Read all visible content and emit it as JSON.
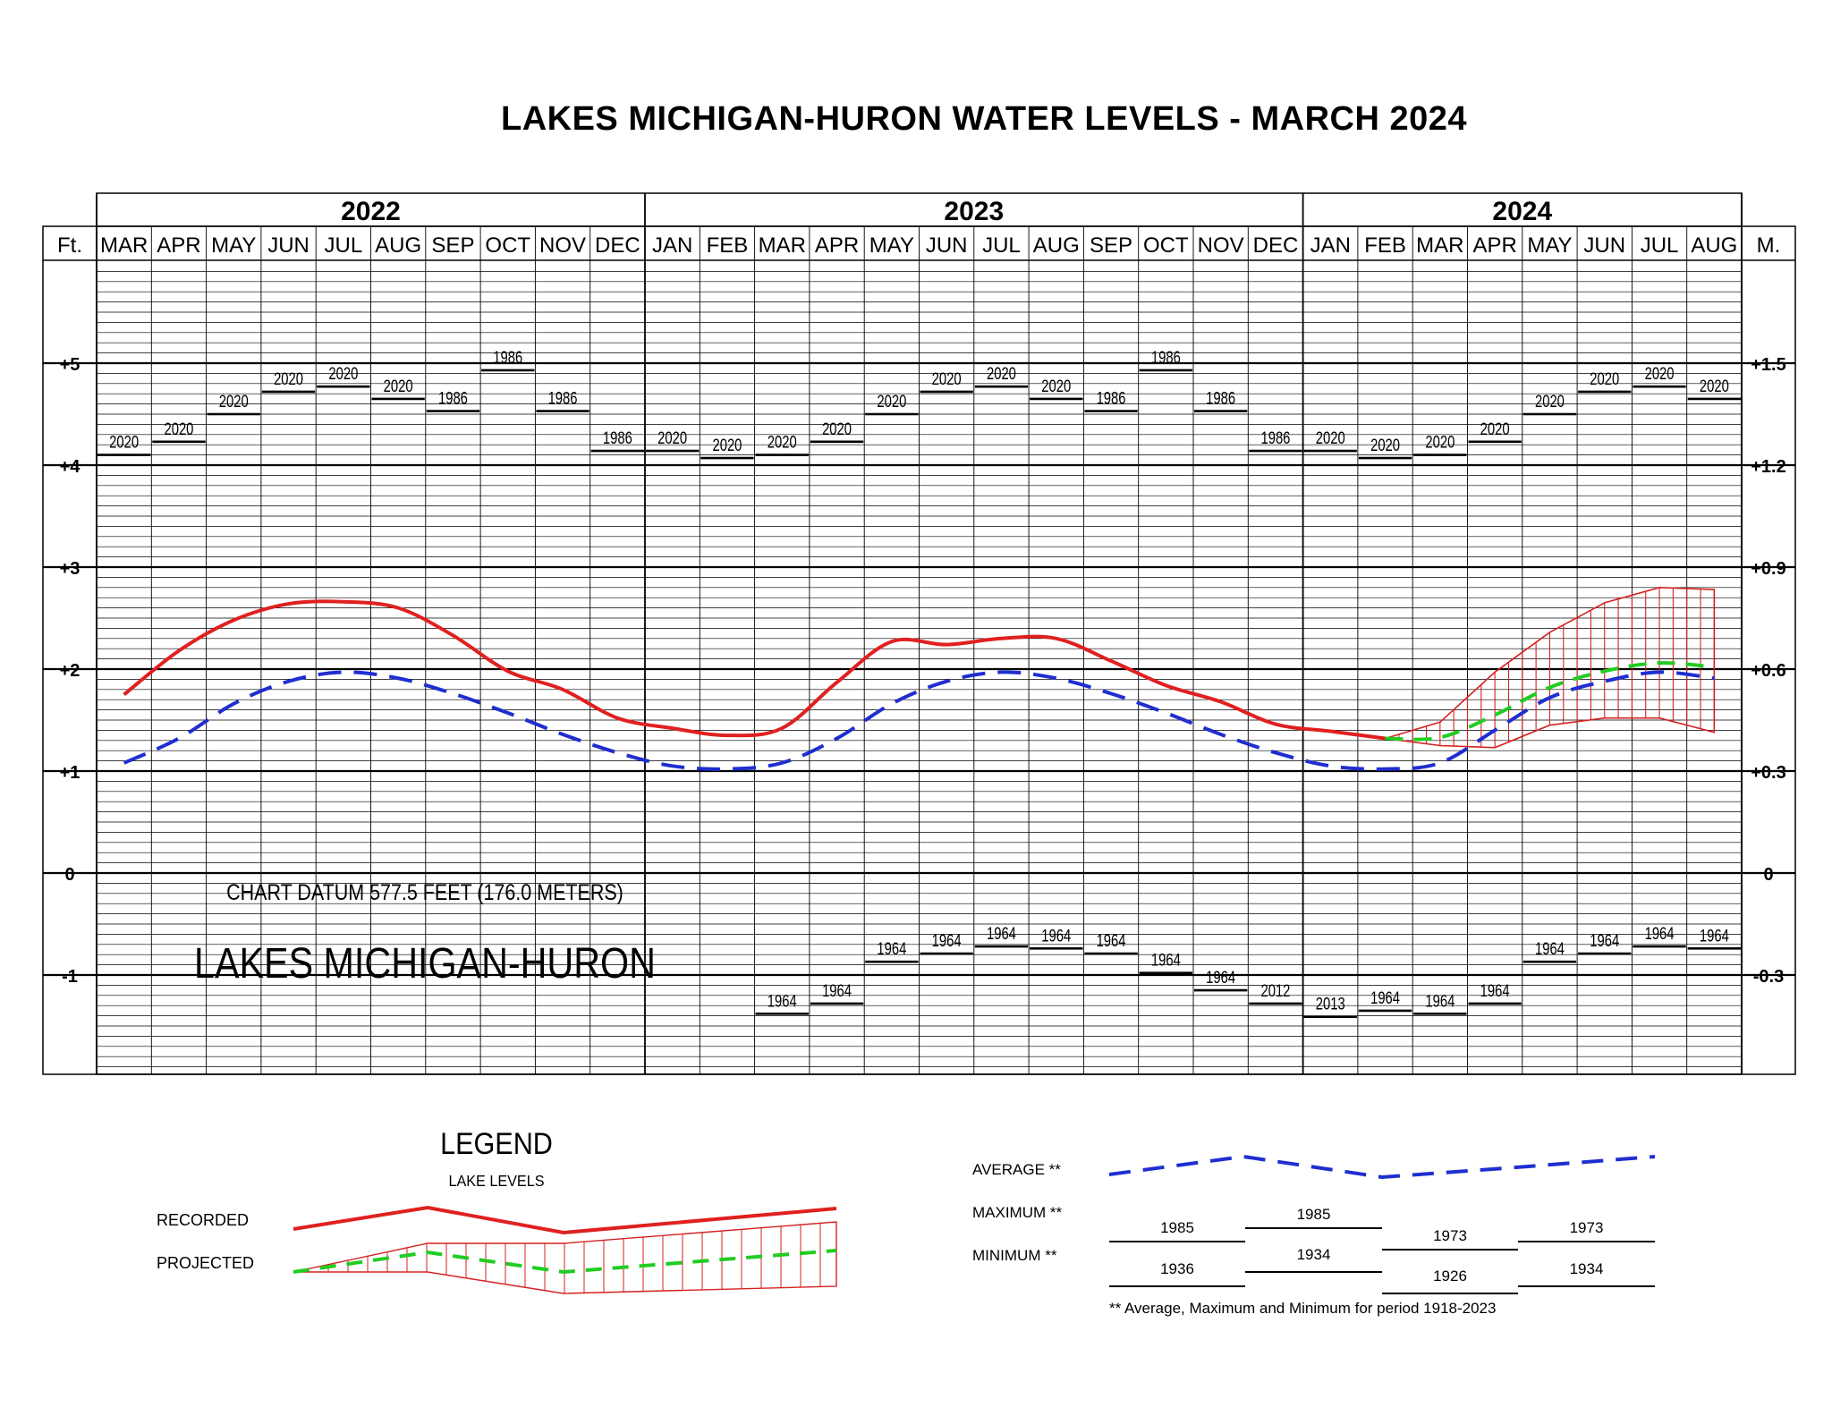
{
  "title": "LAKES MICHIGAN-HURON WATER LEVELS - MARCH 2024",
  "colors": {
    "recorded": "#e02020",
    "average": "#1f2ecf",
    "projected": "#22cc22",
    "band": "#d42222",
    "grid": "#000000"
  },
  "axis": {
    "left_unit": "Ft.",
    "right_unit": "M."
  },
  "chart_data": {
    "type": "line",
    "title": "LAKES MICHIGAN-HURON WATER LEVELS - MARCH 2024",
    "years": [
      {
        "label": "2022",
        "start": 0,
        "end": 10
      },
      {
        "label": "2023",
        "start": 10,
        "end": 22
      },
      {
        "label": "2024",
        "start": 22,
        "end": 30
      }
    ],
    "months": [
      "MAR",
      "APR",
      "MAY",
      "JUN",
      "JUL",
      "AUG",
      "SEP",
      "OCT",
      "NOV",
      "DEC",
      "JAN",
      "FEB",
      "MAR",
      "APR",
      "MAY",
      "JUN",
      "JUL",
      "AUG",
      "SEP",
      "OCT",
      "NOV",
      "DEC",
      "JAN",
      "FEB",
      "MAR",
      "APR",
      "MAY",
      "JUN",
      "JUL",
      "AUG"
    ],
    "ylim": [
      -2.0,
      6.0
    ],
    "yticks_ft": [
      {
        "v": 5,
        "label": "+5"
      },
      {
        "v": 4,
        "label": "+4"
      },
      {
        "v": 3,
        "label": "+3"
      },
      {
        "v": 2,
        "label": "+2"
      },
      {
        "v": 1,
        "label": "+1"
      },
      {
        "v": 0,
        "label": "0"
      },
      {
        "v": -1,
        "label": "-1"
      }
    ],
    "yticks_m": [
      {
        "v": 5,
        "label": "+1.5"
      },
      {
        "v": 4,
        "label": "+1.2"
      },
      {
        "v": 3,
        "label": "+0.9"
      },
      {
        "v": 2,
        "label": "+0.6"
      },
      {
        "v": 1,
        "label": "+0.3"
      },
      {
        "v": 0,
        "label": "0"
      },
      {
        "v": -1,
        "label": "-0.3"
      }
    ],
    "recorded": {
      "x": [
        0,
        1,
        2,
        3,
        4,
        5,
        6,
        7,
        8,
        9,
        10,
        11,
        12,
        13,
        14,
        15,
        16,
        17,
        18,
        19,
        20,
        21,
        22,
        23
      ],
      "y": [
        1.75,
        2.18,
        2.48,
        2.64,
        2.66,
        2.6,
        2.33,
        1.98,
        1.8,
        1.52,
        1.42,
        1.35,
        1.42,
        1.87,
        2.27,
        2.24,
        2.3,
        2.3,
        2.08,
        1.84,
        1.68,
        1.46,
        1.39,
        1.32
      ]
    },
    "average": {
      "x": [
        0,
        1,
        2,
        3,
        4,
        5,
        6,
        7,
        8,
        9,
        10,
        11,
        12,
        13,
        14,
        15,
        16,
        17,
        18,
        19,
        20,
        21,
        22,
        23,
        24,
        25,
        26,
        27,
        28,
        29
      ],
      "y": [
        1.08,
        1.32,
        1.66,
        1.88,
        1.97,
        1.91,
        1.76,
        1.57,
        1.36,
        1.18,
        1.05,
        1.02,
        1.08,
        1.32,
        1.66,
        1.88,
        1.97,
        1.91,
        1.76,
        1.57,
        1.36,
        1.18,
        1.05,
        1.02,
        1.08,
        1.4,
        1.72,
        1.88,
        1.97,
        1.91
      ]
    },
    "projected": {
      "x": [
        23,
        24,
        25,
        26,
        27,
        28,
        29
      ],
      "y": [
        1.32,
        1.33,
        1.55,
        1.82,
        1.98,
        2.06,
        2.02
      ]
    },
    "projected_max": {
      "x": [
        23,
        24,
        25,
        26,
        27,
        28,
        29
      ],
      "y": [
        1.32,
        1.48,
        1.97,
        2.36,
        2.65,
        2.8,
        2.78
      ]
    },
    "projected_min": {
      "x": [
        23,
        24,
        25,
        26,
        27,
        28,
        29
      ],
      "y": [
        1.32,
        1.25,
        1.23,
        1.45,
        1.52,
        1.52,
        1.38
      ]
    },
    "maximum_records": [
      {
        "x": 0,
        "y": 4.1,
        "year": "2020"
      },
      {
        "x": 1,
        "y": 4.23,
        "year": "2020"
      },
      {
        "x": 2,
        "y": 4.5,
        "year": "2020"
      },
      {
        "x": 3,
        "y": 4.72,
        "year": "2020"
      },
      {
        "x": 4,
        "y": 4.77,
        "year": "2020"
      },
      {
        "x": 5,
        "y": 4.65,
        "year": "2020"
      },
      {
        "x": 6,
        "y": 4.53,
        "year": "1986"
      },
      {
        "x": 7,
        "y": 4.93,
        "year": "1986"
      },
      {
        "x": 8,
        "y": 4.53,
        "year": "1986"
      },
      {
        "x": 9,
        "y": 4.14,
        "year": "1986"
      },
      {
        "x": 10,
        "y": 4.14,
        "year": "2020"
      },
      {
        "x": 11,
        "y": 4.07,
        "year": "2020"
      },
      {
        "x": 12,
        "y": 4.1,
        "year": "2020"
      },
      {
        "x": 13,
        "y": 4.23,
        "year": "2020"
      },
      {
        "x": 14,
        "y": 4.5,
        "year": "2020"
      },
      {
        "x": 15,
        "y": 4.72,
        "year": "2020"
      },
      {
        "x": 16,
        "y": 4.77,
        "year": "2020"
      },
      {
        "x": 17,
        "y": 4.65,
        "year": "2020"
      },
      {
        "x": 18,
        "y": 4.53,
        "year": "1986"
      },
      {
        "x": 19,
        "y": 4.93,
        "year": "1986"
      },
      {
        "x": 20,
        "y": 4.53,
        "year": "1986"
      },
      {
        "x": 21,
        "y": 4.14,
        "year": "1986"
      },
      {
        "x": 22,
        "y": 4.14,
        "year": "2020"
      },
      {
        "x": 23,
        "y": 4.07,
        "year": "2020"
      },
      {
        "x": 24,
        "y": 4.1,
        "year": "2020"
      },
      {
        "x": 25,
        "y": 4.23,
        "year": "2020"
      },
      {
        "x": 26,
        "y": 4.5,
        "year": "2020"
      },
      {
        "x": 27,
        "y": 4.72,
        "year": "2020"
      },
      {
        "x": 28,
        "y": 4.77,
        "year": "2020"
      },
      {
        "x": 29,
        "y": 4.65,
        "year": "2020"
      }
    ],
    "minimum_records": [
      {
        "x": 12,
        "y": -1.38,
        "year": "1964"
      },
      {
        "x": 13,
        "y": -1.28,
        "year": "1964"
      },
      {
        "x": 14,
        "y": -0.87,
        "year": "1964"
      },
      {
        "x": 15,
        "y": -0.79,
        "year": "1964"
      },
      {
        "x": 16,
        "y": -0.72,
        "year": "1964"
      },
      {
        "x": 17,
        "y": -0.74,
        "year": "1964"
      },
      {
        "x": 18,
        "y": -0.79,
        "year": "1964"
      },
      {
        "x": 19,
        "y": -0.98,
        "year": "1964"
      },
      {
        "x": 20,
        "y": -1.15,
        "year": "1964"
      },
      {
        "x": 21,
        "y": -1.28,
        "year": "2012"
      },
      {
        "x": 22,
        "y": -1.41,
        "year": "2013"
      },
      {
        "x": 23,
        "y": -1.35,
        "year": "1964"
      },
      {
        "x": 24,
        "y": -1.38,
        "year": "1964"
      },
      {
        "x": 25,
        "y": -1.28,
        "year": "1964"
      },
      {
        "x": 26,
        "y": -0.87,
        "year": "1964"
      },
      {
        "x": 27,
        "y": -0.79,
        "year": "1964"
      },
      {
        "x": 28,
        "y": -0.72,
        "year": "1964"
      },
      {
        "x": 29,
        "y": -0.74,
        "year": "1964"
      }
    ],
    "annotations": {
      "datum": "CHART DATUM  577.5 FEET (176.0 METERS)",
      "lake": "LAKES MICHIGAN-HURON"
    },
    "grid": true
  },
  "legend": {
    "title": "LEGEND",
    "subtitle": "LAKE LEVELS",
    "recorded_label": "RECORDED",
    "projected_label": "PROJECTED",
    "average_label": "AVERAGE **",
    "maximum_label": "MAXIMUM **",
    "minimum_label": "MINIMUM **",
    "max_years": [
      "1985",
      "1985",
      "1973",
      "1973"
    ],
    "min_years": [
      "1936",
      "1934",
      "1926",
      "1934"
    ],
    "footnote": "** Average, Maximum and Minimum for period 1918-2023"
  }
}
